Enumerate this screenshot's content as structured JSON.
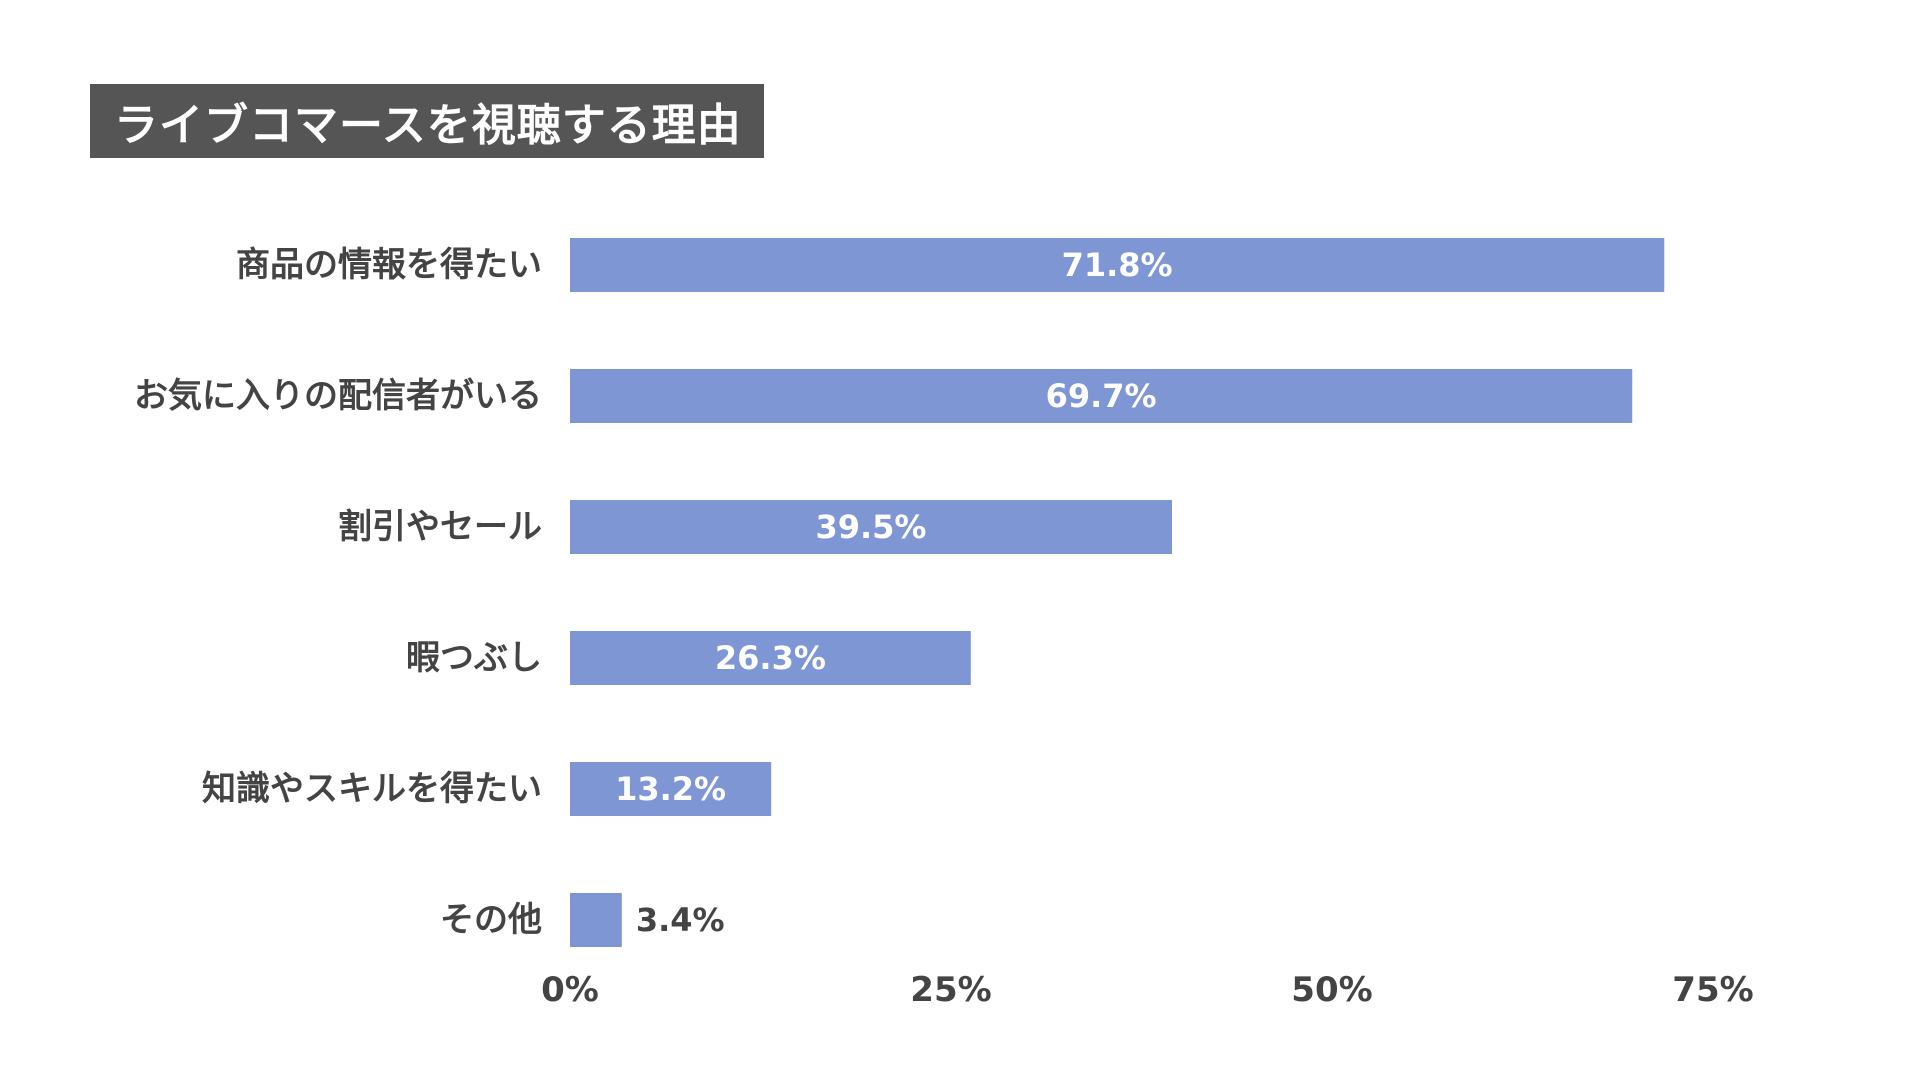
{
  "chart_data": {
    "type": "bar",
    "orientation": "horizontal",
    "title": "ライブコマースを視聴する理由",
    "categories": [
      "商品の情報を得たい",
      "お気に入りの配信者がいる",
      "割引やセール",
      "暇つぶし",
      "知識やスキルを得たい",
      "その他"
    ],
    "values": [
      71.8,
      69.7,
      39.5,
      26.3,
      13.2,
      3.4
    ],
    "value_labels": [
      "71.8%",
      "69.7%",
      "39.5%",
      "26.3%",
      "13.2%",
      "3.4%"
    ],
    "xlim": [
      0,
      75
    ],
    "ticks": [
      0,
      25,
      50,
      75
    ],
    "tick_labels": [
      "0%",
      "25%",
      "50%",
      "75%"
    ],
    "xlabel": "",
    "ylabel": "",
    "grid": false,
    "legend": "none"
  },
  "colors": {
    "bar": "#7f96d4",
    "title_bg": "#555555",
    "label_inside": "#ffffff",
    "label_outside": "#444444",
    "text": "#444444"
  }
}
